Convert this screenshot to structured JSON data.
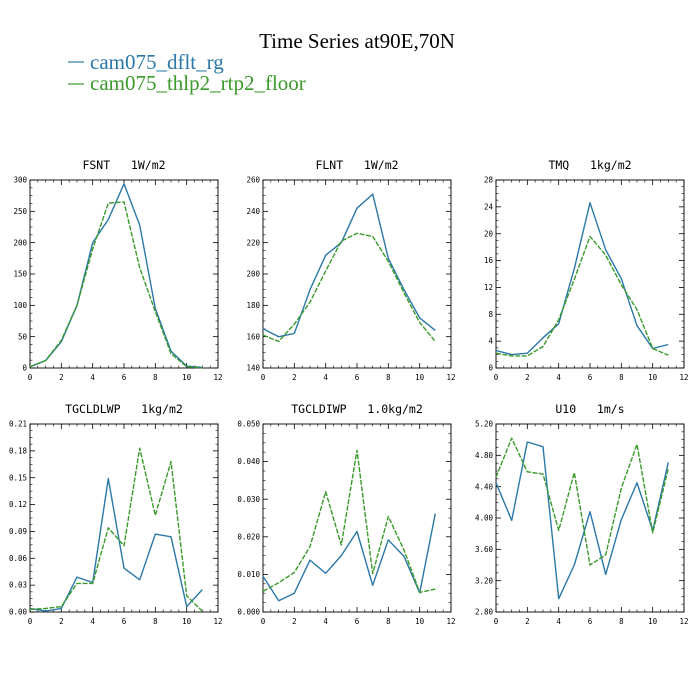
{
  "figure": {
    "title": "Time Series at90E,70N",
    "legend": [
      {
        "name": "cam075_dflt_rg",
        "color": "#2a78a8",
        "dash": "solid"
      },
      {
        "name": "cam075_thlp2_rtp2_floor",
        "color": "#3a9a2a",
        "dash": "dashed"
      }
    ]
  },
  "chart_data": [
    {
      "type": "line",
      "title": "FSNT   1W/m2",
      "x": [
        0,
        1,
        2,
        3,
        4,
        5,
        6,
        7,
        8,
        9,
        10,
        11
      ],
      "xlim": [
        0,
        12
      ],
      "xticks": [
        "0",
        "2",
        "4",
        "6",
        "8",
        "10",
        "12"
      ],
      "ylim": [
        0,
        300
      ],
      "yticks": [
        "0",
        "50",
        "100",
        "150",
        "200",
        "250",
        "300"
      ],
      "series": [
        {
          "name": "cam075_dflt_rg",
          "values": [
            2,
            12,
            42,
            100,
            200,
            237,
            294,
            228,
            95,
            27,
            3,
            1
          ]
        },
        {
          "name": "cam075_thlp2_rtp2_floor",
          "values": [
            2,
            12,
            44,
            100,
            190,
            263,
            265,
            160,
            90,
            23,
            2,
            0
          ]
        }
      ]
    },
    {
      "type": "line",
      "title": "FLNT   1W/m2",
      "x": [
        0,
        1,
        2,
        3,
        4,
        5,
        6,
        7,
        8,
        9,
        10,
        11
      ],
      "xlim": [
        0,
        12
      ],
      "xticks": [
        "0",
        "2",
        "4",
        "6",
        "8",
        "10",
        "12"
      ],
      "ylim": [
        140,
        260
      ],
      "yticks": [
        "140",
        "160",
        "180",
        "200",
        "220",
        "240",
        "260"
      ],
      "series": [
        {
          "name": "cam075_dflt_rg",
          "values": [
            165,
            160,
            162,
            190,
            212,
            220,
            242,
            251,
            210,
            190,
            172,
            164
          ]
        },
        {
          "name": "cam075_thlp2_rtp2_floor",
          "values": [
            161,
            157,
            168,
            182,
            202,
            221,
            226,
            224,
            208,
            188,
            169,
            157
          ]
        }
      ]
    },
    {
      "type": "line",
      "title": "TMQ   1kg/m2",
      "x": [
        0,
        1,
        2,
        3,
        4,
        5,
        6,
        7,
        8,
        9,
        10,
        11
      ],
      "xlim": [
        0,
        12
      ],
      "xticks": [
        "0",
        "2",
        "4",
        "6",
        "8",
        "10",
        "12"
      ],
      "ylim": [
        0,
        28
      ],
      "yticks": [
        "0",
        "4",
        "8",
        "12",
        "16",
        "20",
        "24",
        "28"
      ],
      "series": [
        {
          "name": "cam075_dflt_rg",
          "values": [
            2.6,
            2.0,
            2.2,
            4.5,
            6.6,
            14.8,
            24.6,
            17.6,
            13.3,
            6.3,
            2.9,
            3.5
          ]
        },
        {
          "name": "cam075_thlp2_rtp2_floor",
          "values": [
            2.2,
            1.8,
            1.8,
            3.2,
            7.2,
            13.2,
            19.6,
            16.8,
            12.4,
            8.7,
            2.9,
            1.9
          ]
        }
      ]
    },
    {
      "type": "line",
      "title": "TGCLDLWP   1kg/m2",
      "x": [
        0,
        1,
        2,
        3,
        4,
        5,
        6,
        7,
        8,
        9,
        10,
        11
      ],
      "xlim": [
        0,
        12
      ],
      "xticks": [
        "0",
        "2",
        "4",
        "6",
        "8",
        "10",
        "12"
      ],
      "ylim": [
        0,
        0.21
      ],
      "yticks": [
        "0.00",
        "0.03",
        "0.06",
        "0.09",
        "0.12",
        "0.15",
        "0.18",
        "0.21"
      ],
      "series": [
        {
          "name": "cam075_dflt_rg",
          "values": [
            0.004,
            0.001,
            0.004,
            0.039,
            0.033,
            0.149,
            0.049,
            0.036,
            0.087,
            0.084,
            0.006,
            0.025
          ]
        },
        {
          "name": "cam075_thlp2_rtp2_floor",
          "values": [
            0.003,
            0.004,
            0.006,
            0.032,
            0.032,
            0.094,
            0.074,
            0.183,
            0.108,
            0.168,
            0.018,
            0.001
          ]
        }
      ]
    },
    {
      "type": "line",
      "title": "TGCLDIWP   1.0kg/m2",
      "x": [
        0,
        1,
        2,
        3,
        4,
        5,
        6,
        7,
        8,
        9,
        10,
        11
      ],
      "xlim": [
        0,
        12
      ],
      "xticks": [
        "0",
        "2",
        "4",
        "6",
        "8",
        "10",
        "12"
      ],
      "ylim": [
        0,
        0.05
      ],
      "yticks": [
        "0.000",
        "0.010",
        "0.020",
        "0.030",
        "0.040",
        "0.050"
      ],
      "series": [
        {
          "name": "cam075_dflt_rg",
          "values": [
            0.0095,
            0.003,
            0.005,
            0.0138,
            0.0103,
            0.015,
            0.0214,
            0.0071,
            0.0192,
            0.0148,
            0.0051,
            0.0262
          ]
        },
        {
          "name": "cam075_thlp2_rtp2_floor",
          "values": [
            0.0055,
            0.0078,
            0.0105,
            0.0174,
            0.032,
            0.0178,
            0.043,
            0.0102,
            0.0254,
            0.0165,
            0.0052,
            0.0061
          ]
        }
      ]
    },
    {
      "type": "line",
      "title": "U10   1m/s",
      "x": [
        0,
        1,
        2,
        3,
        4,
        5,
        6,
        7,
        8,
        9,
        10,
        11
      ],
      "xlim": [
        0,
        12
      ],
      "xticks": [
        "0",
        "2",
        "4",
        "6",
        "8",
        "10",
        "12"
      ],
      "ylim": [
        2.8,
        5.2
      ],
      "yticks": [
        "2.80",
        "3.20",
        "3.60",
        "4.00",
        "4.40",
        "4.80",
        "5.20"
      ],
      "series": [
        {
          "name": "cam075_dflt_rg",
          "values": [
            4.45,
            3.97,
            4.97,
            4.91,
            2.97,
            3.4,
            4.08,
            3.28,
            3.98,
            4.45,
            3.84,
            4.71
          ]
        },
        {
          "name": "cam075_thlp2_rtp2_floor",
          "values": [
            4.52,
            5.02,
            4.59,
            4.56,
            3.84,
            4.58,
            3.4,
            3.53,
            4.38,
            4.94,
            3.81,
            4.63
          ]
        }
      ]
    }
  ]
}
